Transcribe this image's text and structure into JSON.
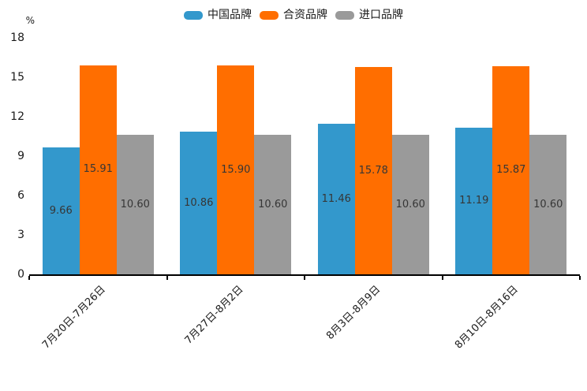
{
  "chart_data": {
    "type": "bar",
    "title": "",
    "unit_label": "%",
    "categories": [
      "7月20日-7月26日",
      "7月27日-8月2日",
      "8月3日-8月9日",
      "8月10日-8月16日"
    ],
    "series": [
      {
        "name": "中国品牌",
        "color": "#3398cc",
        "values": [
          9.66,
          10.86,
          11.46,
          11.19
        ]
      },
      {
        "name": "合资品牌",
        "color": "#ff6e00",
        "values": [
          15.91,
          15.9,
          15.78,
          15.87
        ]
      },
      {
        "name": "进口品牌",
        "color": "#9a9a9a",
        "values": [
          10.6,
          10.6,
          10.6,
          10.6
        ]
      }
    ],
    "value_decimals": 2,
    "y_ticks": [
      0,
      3,
      6,
      9,
      12,
      15,
      18
    ],
    "ylim": [
      0,
      18
    ],
    "grid": false,
    "legend_position": "top",
    "bar_label_color": "#363636",
    "axis_color": "#000000"
  }
}
